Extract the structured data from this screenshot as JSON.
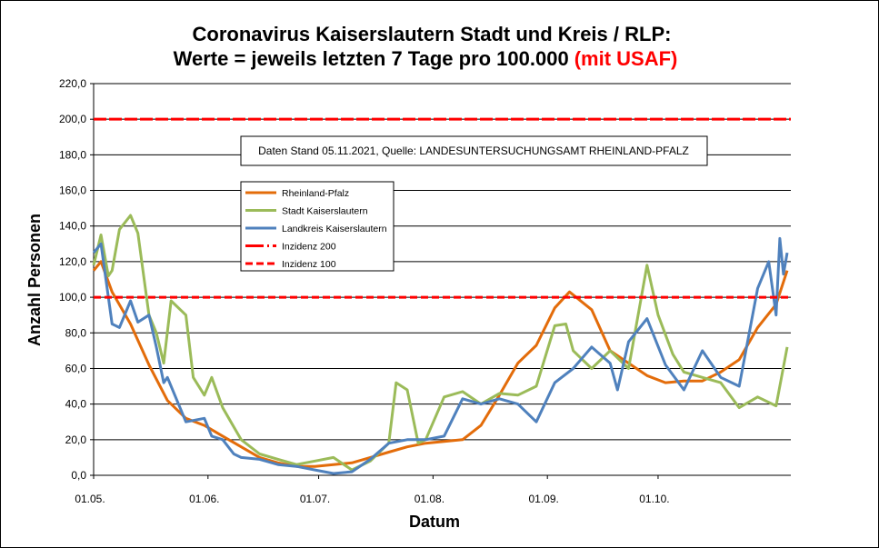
{
  "chart_data": {
    "type": "line",
    "title_line1": "Coronavirus Kaiserslautern Stadt und Kreis / RLP:",
    "title_line2": "Werte = jeweils letzten 7 Tage pro 100.000",
    "title_highlight": "(mit USAF)",
    "title_highlight_color": "#ff0000",
    "annotation": "Daten Stand 05.11.2021, Quelle: LANDESUNTERSUCHUNGSAMT RHEINLAND-PFALZ",
    "xlabel": "Datum",
    "ylabel": "Anzahl Personen",
    "ylim": [
      0,
      220
    ],
    "yticks": [
      "0,0",
      "20,0",
      "40,0",
      "60,0",
      "80,0",
      "100,0",
      "120,0",
      "140,0",
      "160,0",
      "180,0",
      "200,0",
      "220,0"
    ],
    "xlim": [
      "01.05.",
      "05.11."
    ],
    "xticks": [
      "01.05.",
      "01.06.",
      "01.07.",
      "01.08.",
      "01.09.",
      "01.10."
    ],
    "grid": true,
    "legend_placement": "top-left inside plot",
    "series": [
      {
        "name": "Rheinland-Pfalz",
        "color": "#e36c0a",
        "points": [
          [
            "01.05.",
            115
          ],
          [
            "03.05.",
            120
          ],
          [
            "06.05.",
            103
          ],
          [
            "11.05.",
            85
          ],
          [
            "16.05.",
            62
          ],
          [
            "21.05.",
            42
          ],
          [
            "26.05.",
            32
          ],
          [
            "31.05.",
            28
          ],
          [
            "05.06.",
            22
          ],
          [
            "10.06.",
            16
          ],
          [
            "15.06.",
            10
          ],
          [
            "20.06.",
            7
          ],
          [
            "25.06.",
            5
          ],
          [
            "30.06.",
            5
          ],
          [
            "05.07.",
            6
          ],
          [
            "10.07.",
            7
          ],
          [
            "15.07.",
            10
          ],
          [
            "20.07.",
            13
          ],
          [
            "25.07.",
            16
          ],
          [
            "30.07.",
            18
          ],
          [
            "04.08.",
            19
          ],
          [
            "09.08.",
            20
          ],
          [
            "14.08.",
            28
          ],
          [
            "19.08.",
            45
          ],
          [
            "24.08.",
            63
          ],
          [
            "29.08.",
            73
          ],
          [
            "03.09.",
            94
          ],
          [
            "07.09.",
            103
          ],
          [
            "13.09.",
            93
          ],
          [
            "18.09.",
            70
          ],
          [
            "23.09.",
            63
          ],
          [
            "28.09.",
            56
          ],
          [
            "03.10.",
            52
          ],
          [
            "08.10.",
            53
          ],
          [
            "13.10.",
            53
          ],
          [
            "18.10.",
            58
          ],
          [
            "23.10.",
            65
          ],
          [
            "28.10.",
            83
          ],
          [
            "02.11.",
            96
          ],
          [
            "05.11.",
            115
          ]
        ]
      },
      {
        "name": "Stadt Kaiserslautern",
        "color": "#9bbb59",
        "points": [
          [
            "01.05.",
            118
          ],
          [
            "03.05.",
            135
          ],
          [
            "05.05.",
            112
          ],
          [
            "06.05.",
            115
          ],
          [
            "08.05.",
            138
          ],
          [
            "11.05.",
            146
          ],
          [
            "13.05.",
            136
          ],
          [
            "16.05.",
            90
          ],
          [
            "18.05.",
            80
          ],
          [
            "20.05.",
            63
          ],
          [
            "22.05.",
            98
          ],
          [
            "26.05.",
            90
          ],
          [
            "28.05.",
            55
          ],
          [
            "31.05.",
            45
          ],
          [
            "02.06.",
            55
          ],
          [
            "05.06.",
            38
          ],
          [
            "10.06.",
            20
          ],
          [
            "15.06.",
            12
          ],
          [
            "20.06.",
            9
          ],
          [
            "25.06.",
            6
          ],
          [
            "30.06.",
            8
          ],
          [
            "05.07.",
            10
          ],
          [
            "10.07.",
            3
          ],
          [
            "15.07.",
            8
          ],
          [
            "20.07.",
            18
          ],
          [
            "22.07.",
            52
          ],
          [
            "25.07.",
            48
          ],
          [
            "28.07.",
            18
          ],
          [
            "30.07.",
            20
          ],
          [
            "04.08.",
            44
          ],
          [
            "09.08.",
            47
          ],
          [
            "14.08.",
            40
          ],
          [
            "19.08.",
            46
          ],
          [
            "24.08.",
            45
          ],
          [
            "29.08.",
            50
          ],
          [
            "03.09.",
            84
          ],
          [
            "06.09.",
            85
          ],
          [
            "08.09.",
            70
          ],
          [
            "13.09.",
            60
          ],
          [
            "18.09.",
            70
          ],
          [
            "23.09.",
            60
          ],
          [
            "28.09.",
            118
          ],
          [
            "01.10.",
            90
          ],
          [
            "05.10.",
            68
          ],
          [
            "08.10.",
            58
          ],
          [
            "13.10.",
            55
          ],
          [
            "18.10.",
            52
          ],
          [
            "23.10.",
            38
          ],
          [
            "28.10.",
            44
          ],
          [
            "02.11.",
            39
          ],
          [
            "05.11.",
            72
          ]
        ]
      },
      {
        "name": "Landkreis Kaiserslautern",
        "color": "#4f81bd",
        "points": [
          [
            "01.05.",
            125
          ],
          [
            "03.05.",
            130
          ],
          [
            "06.05.",
            85
          ],
          [
            "08.05.",
            83
          ],
          [
            "11.05.",
            98
          ],
          [
            "13.05.",
            86
          ],
          [
            "16.05.",
            90
          ],
          [
            "18.05.",
            72
          ],
          [
            "20.05.",
            52
          ],
          [
            "21.05.",
            55
          ],
          [
            "26.05.",
            30
          ],
          [
            "31.05.",
            32
          ],
          [
            "02.06.",
            22
          ],
          [
            "05.06.",
            20
          ],
          [
            "08.06.",
            12
          ],
          [
            "10.06.",
            10
          ],
          [
            "15.06.",
            9
          ],
          [
            "20.06.",
            6
          ],
          [
            "25.06.",
            5
          ],
          [
            "30.06.",
            3
          ],
          [
            "05.07.",
            1
          ],
          [
            "10.07.",
            2
          ],
          [
            "15.07.",
            9
          ],
          [
            "20.07.",
            18
          ],
          [
            "25.07.",
            20
          ],
          [
            "30.07.",
            20
          ],
          [
            "04.08.",
            22
          ],
          [
            "09.08.",
            43
          ],
          [
            "14.08.",
            40
          ],
          [
            "19.08.",
            43
          ],
          [
            "24.08.",
            40
          ],
          [
            "29.08.",
            30
          ],
          [
            "03.09.",
            52
          ],
          [
            "08.09.",
            60
          ],
          [
            "13.09.",
            72
          ],
          [
            "18.09.",
            63
          ],
          [
            "20.09.",
            48
          ],
          [
            "23.09.",
            75
          ],
          [
            "28.09.",
            88
          ],
          [
            "03.10.",
            62
          ],
          [
            "08.10.",
            48
          ],
          [
            "13.10.",
            70
          ],
          [
            "18.10.",
            55
          ],
          [
            "23.10.",
            50
          ],
          [
            "28.10.",
            105
          ],
          [
            "31.10.",
            120
          ],
          [
            "02.11.",
            90
          ],
          [
            "03.11.",
            133
          ],
          [
            "04.11.",
            113
          ],
          [
            "05.11.",
            125
          ]
        ]
      },
      {
        "name": "Inzidenz 200",
        "color": "#ff0000",
        "style": "dash-dot",
        "value": 200
      },
      {
        "name": "Inzidenz 100",
        "color": "#ff0000",
        "style": "dashed",
        "value": 100
      }
    ]
  }
}
